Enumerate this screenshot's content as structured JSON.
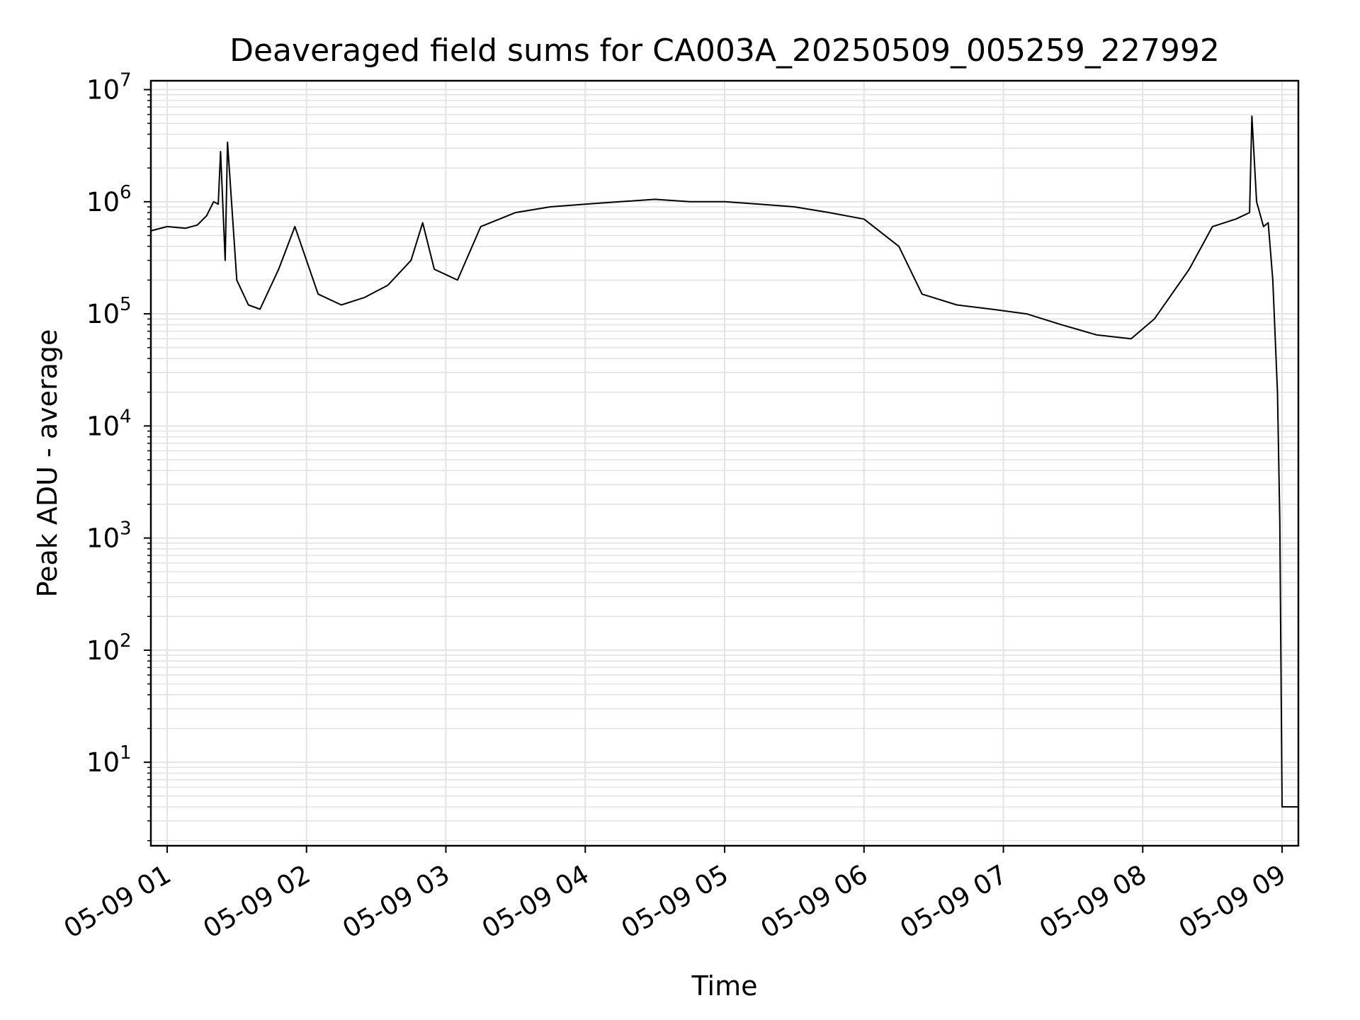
{
  "chart_data": {
    "type": "line",
    "title": "Deaveraged field sums for CA003A_20250509_005259_227992",
    "xlabel": "Time",
    "ylabel": "Peak ADU - average",
    "yscale": "log",
    "ylim": [
      1.8,
      12000000
    ],
    "xlim": [
      "05-09 00:53",
      "05-09 09:07"
    ],
    "grid": true,
    "line_color": "#000000",
    "grid_color": "#e3e3e3",
    "x_ticks": [
      {
        "value": "05-09 01:00",
        "label": "05-09 01"
      },
      {
        "value": "05-09 02:00",
        "label": "05-09 02"
      },
      {
        "value": "05-09 03:00",
        "label": "05-09 03"
      },
      {
        "value": "05-09 04:00",
        "label": "05-09 04"
      },
      {
        "value": "05-09 05:00",
        "label": "05-09 05"
      },
      {
        "value": "05-09 06:00",
        "label": "05-09 06"
      },
      {
        "value": "05-09 07:00",
        "label": "05-09 07"
      },
      {
        "value": "05-09 08:00",
        "label": "05-09 08"
      },
      {
        "value": "05-09 09:00",
        "label": "05-09 09"
      }
    ],
    "y_ticks": [
      {
        "value": 10,
        "base": "10",
        "exp": "1"
      },
      {
        "value": 100,
        "base": "10",
        "exp": "2"
      },
      {
        "value": 1000,
        "base": "10",
        "exp": "3"
      },
      {
        "value": 10000,
        "base": "10",
        "exp": "4"
      },
      {
        "value": 100000,
        "base": "10",
        "exp": "5"
      },
      {
        "value": 1000000,
        "base": "10",
        "exp": "6"
      },
      {
        "value": 10000000,
        "base": "10",
        "exp": "7"
      }
    ],
    "series": [
      {
        "x": [
          "05-09 00:53",
          "05-09 01:00",
          "05-09 01:08",
          "05-09 01:13",
          "05-09 01:17",
          "05-09 01:20",
          "05-09 01:22",
          "05-09 01:23",
          "05-09 01:25",
          "05-09 01:26",
          "05-09 01:30",
          "05-09 01:35",
          "05-09 01:40",
          "05-09 01:48",
          "05-09 01:55",
          "05-09 02:05",
          "05-09 02:15",
          "05-09 02:25",
          "05-09 02:35",
          "05-09 02:45",
          "05-09 02:50",
          "05-09 02:55",
          "05-09 03:05",
          "05-09 03:15",
          "05-09 03:30",
          "05-09 03:45",
          "05-09 04:00",
          "05-09 04:15",
          "05-09 04:30",
          "05-09 04:45",
          "05-09 05:00",
          "05-09 05:15",
          "05-09 05:30",
          "05-09 05:45",
          "05-09 06:00",
          "05-09 06:15",
          "05-09 06:25",
          "05-09 06:40",
          "05-09 06:55",
          "05-09 07:10",
          "05-09 07:25",
          "05-09 07:40",
          "05-09 07:55",
          "05-09 08:05",
          "05-09 08:20",
          "05-09 08:30",
          "05-09 08:40",
          "05-09 08:46",
          "05-09 08:47",
          "05-09 08:49",
          "05-09 08:52",
          "05-09 08:54",
          "05-09 08:56",
          "05-09 08:58",
          "05-09 08:59",
          "05-09 09:00",
          "05-09 09:07"
        ],
        "y": [
          550000,
          600000,
          580000,
          620000,
          750000,
          1000000,
          950000,
          2800000,
          300000,
          3400000,
          200000,
          120000,
          110000,
          250000,
          600000,
          150000,
          120000,
          140000,
          180000,
          300000,
          650000,
          250000,
          200000,
          600000,
          800000,
          900000,
          950000,
          1000000,
          1050000,
          1000000,
          1000000,
          950000,
          900000,
          800000,
          700000,
          400000,
          150000,
          120000,
          110000,
          100000,
          80000,
          65000,
          60000,
          90000,
          250000,
          600000,
          700000,
          800000,
          5800000,
          1000000,
          600000,
          650000,
          200000,
          20000,
          1400,
          4,
          4
        ]
      }
    ]
  }
}
